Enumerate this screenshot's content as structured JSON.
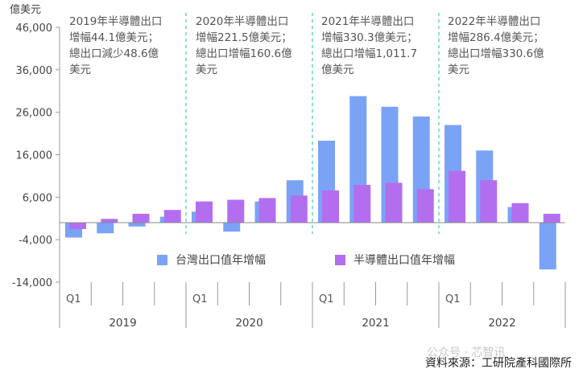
{
  "chart_data": {
    "type": "bar",
    "y_unit_label": "億美元",
    "ylim": [
      -14000,
      46000
    ],
    "y_ticks": [
      46000,
      36000,
      26000,
      16000,
      6000,
      -4000,
      -14000
    ],
    "y_tick_labels": [
      "46,000",
      "36,000",
      "26,000",
      "16,000",
      "6,000",
      "-4,000",
      "-14,000"
    ],
    "years": [
      "2019",
      "2020",
      "2021",
      "2022"
    ],
    "quarter_label": "Q1",
    "categories": [
      "2019Q1",
      "2019Q2",
      "2019Q3",
      "2019Q4",
      "2020Q1",
      "2020Q2",
      "2020Q3",
      "2020Q4",
      "2021Q1",
      "2021Q2",
      "2021Q3",
      "2021Q4",
      "2022Q1",
      "2022Q2",
      "2022Q3",
      "2022Q4"
    ],
    "series": [
      {
        "name": "台灣出口值年增幅",
        "color": "#7ba3f5",
        "values": [
          -3500,
          -2500,
          -900,
          1400,
          2600,
          -2100,
          5000,
          10000,
          19300,
          29800,
          27300,
          25000,
          23000,
          17000,
          3700,
          -11000
        ]
      },
      {
        "name": "半導體出口值年增幅",
        "color": "#b36ef0",
        "values": [
          -1500,
          900,
          2100,
          3000,
          5000,
          5400,
          5800,
          6400,
          7600,
          8900,
          9400,
          7900,
          12200,
          10000,
          4600,
          2100
        ]
      }
    ],
    "annotations": [
      "2019年半導體出口\n增幅44.1億美元；\n總出口減少48.6億\n美元",
      "2020年半導體出口\n增幅221.5億美元；\n總出口增幅160.6億\n美元",
      "2021年半導體出口\n增幅330.3億美元；\n總出口增幅1,011.7\n億美元",
      "2022年半導體出口\n增幅286.4億美元；\n總出口增幅330.6億\n美元"
    ],
    "legend_position": "bottom-center",
    "source": "資料來源：工研院產科國際所"
  },
  "watermark": "公众号 · 芯智讯",
  "colors": {
    "axis": "#999999",
    "divider": "#4fd0b8"
  }
}
